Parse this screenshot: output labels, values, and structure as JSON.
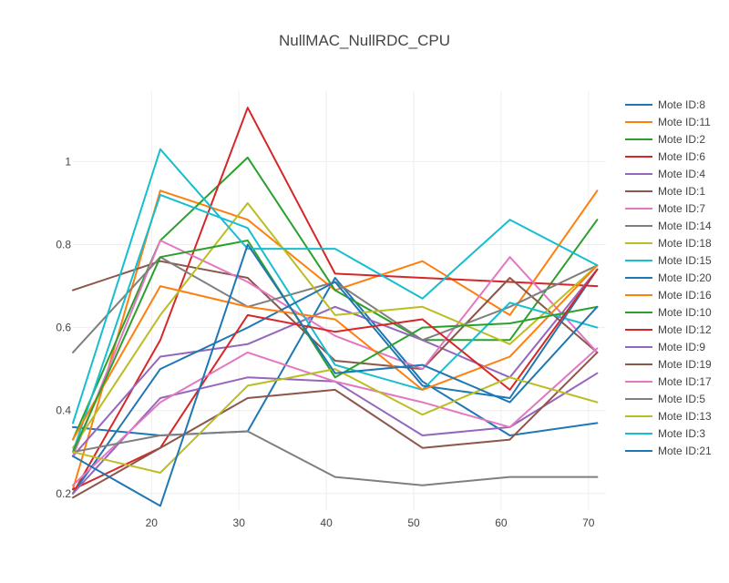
{
  "chart_data": {
    "type": "line",
    "title": "NullMAC_NullRDC_CPU",
    "xlabel": "",
    "ylabel": "",
    "xlim": [
      11,
      72
    ],
    "ylim": [
      0.16,
      1.17
    ],
    "xticks": [
      20,
      30,
      40,
      50,
      60,
      70
    ],
    "yticks": [
      0.2,
      0.4,
      0.6,
      0.8,
      1
    ],
    "grid": true,
    "legend_position": "right",
    "x": [
      11,
      21,
      31,
      41,
      51,
      61,
      71
    ],
    "series": [
      {
        "name": "Mote ID:8",
        "color": "#1f77b4",
        "values": [
          0.36,
          0.34,
          0.35,
          0.72,
          0.47,
          0.34,
          0.37
        ]
      },
      {
        "name": "Mote ID:11",
        "color": "#ff7f0e",
        "values": [
          0.21,
          0.93,
          0.86,
          0.69,
          0.76,
          0.63,
          0.93
        ]
      },
      {
        "name": "Mote ID:2",
        "color": "#2ca02c",
        "values": [
          0.33,
          0.81,
          1.01,
          0.69,
          0.57,
          0.57,
          0.86
        ]
      },
      {
        "name": "Mote ID:6",
        "color": "#d62728",
        "values": [
          0.2,
          0.57,
          1.13,
          0.73,
          0.72,
          0.71,
          0.7
        ]
      },
      {
        "name": "Mote ID:4",
        "color": "#9467bd",
        "values": [
          0.29,
          0.53,
          0.56,
          0.65,
          0.57,
          0.48,
          0.74
        ]
      },
      {
        "name": "Mote ID:1",
        "color": "#8c564b",
        "values": [
          0.69,
          0.76,
          0.72,
          0.52,
          0.5,
          0.72,
          0.54
        ]
      },
      {
        "name": "Mote ID:7",
        "color": "#e377c2",
        "values": [
          0.29,
          0.81,
          0.71,
          0.58,
          0.5,
          0.77,
          0.54
        ]
      },
      {
        "name": "Mote ID:14",
        "color": "#7f7f7f",
        "values": [
          0.54,
          0.77,
          0.65,
          0.71,
          0.57,
          0.65,
          0.75
        ]
      },
      {
        "name": "Mote ID:18",
        "color": "#bcbd22",
        "values": [
          0.31,
          0.63,
          0.9,
          0.63,
          0.65,
          0.56,
          0.75
        ]
      },
      {
        "name": "Mote ID:15",
        "color": "#17becf",
        "values": [
          0.3,
          0.92,
          0.84,
          0.51,
          0.45,
          0.66,
          0.6
        ]
      },
      {
        "name": "Mote ID:20",
        "color": "#1f77b4",
        "values": [
          0.2,
          0.5,
          0.6,
          0.71,
          0.46,
          0.43,
          0.74
        ]
      },
      {
        "name": "Mote ID:16",
        "color": "#ff7f0e",
        "values": [
          0.33,
          0.7,
          0.65,
          0.62,
          0.45,
          0.53,
          0.75
        ]
      },
      {
        "name": "Mote ID:10",
        "color": "#2ca02c",
        "values": [
          0.3,
          0.77,
          0.81,
          0.48,
          0.6,
          0.61,
          0.65
        ]
      },
      {
        "name": "Mote ID:12",
        "color": "#d62728",
        "values": [
          0.21,
          0.31,
          0.63,
          0.59,
          0.62,
          0.45,
          0.74
        ]
      },
      {
        "name": "Mote ID:9",
        "color": "#9467bd",
        "values": [
          0.2,
          0.43,
          0.48,
          0.47,
          0.34,
          0.36,
          0.49
        ]
      },
      {
        "name": "Mote ID:19",
        "color": "#8c564b",
        "values": [
          0.19,
          0.31,
          0.43,
          0.45,
          0.31,
          0.33,
          0.54
        ]
      },
      {
        "name": "Mote ID:17",
        "color": "#e377c2",
        "values": [
          0.22,
          0.42,
          0.54,
          0.47,
          0.42,
          0.36,
          0.55
        ]
      },
      {
        "name": "Mote ID:5",
        "color": "#7f7f7f",
        "values": [
          0.3,
          0.34,
          0.35,
          0.24,
          0.22,
          0.24,
          0.24
        ]
      },
      {
        "name": "Mote ID:13",
        "color": "#bcbd22",
        "values": [
          0.3,
          0.25,
          0.46,
          0.5,
          0.39,
          0.48,
          0.42
        ]
      },
      {
        "name": "Mote ID:3",
        "color": "#17becf",
        "values": [
          0.37,
          1.03,
          0.79,
          0.79,
          0.67,
          0.86,
          0.75
        ]
      },
      {
        "name": "Mote ID:21",
        "color": "#1f77b4",
        "values": [
          0.29,
          0.17,
          0.8,
          0.49,
          0.51,
          0.42,
          0.65
        ]
      }
    ]
  }
}
